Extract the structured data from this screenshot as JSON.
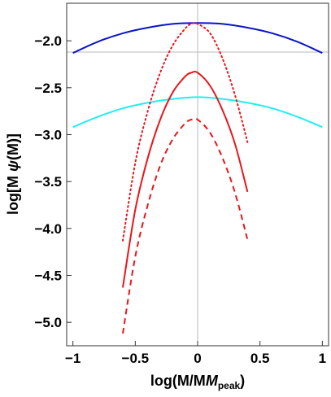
{
  "chart_data": {
    "type": "line",
    "xlabel": "log(M/M",
    "xlabel_italic": "M",
    "xlabel_sub": "peak",
    "xlabel_close": ")",
    "ylabel_pre": "log[M ",
    "ylabel_psi": "ψ",
    "ylabel_post": "(M)]",
    "xlim": [
      -1.05,
      1.05
    ],
    "ylim": [
      -5.25,
      -1.6
    ],
    "xticks": [
      -1,
      -0.5,
      0,
      0.5,
      1
    ],
    "xtick_labels": [
      "−1",
      "−0.5",
      "0",
      "0.5",
      "1"
    ],
    "yticks": [
      -2.0,
      -2.5,
      -3.0,
      -3.5,
      -4.0,
      -4.5,
      -5.0
    ],
    "ytick_labels": [
      "−2.0",
      "−2.5",
      "−3.0",
      "−3.5",
      "−4.0",
      "−4.5",
      "−5.0"
    ],
    "reference_lines": {
      "x": 0,
      "y": -2.12
    },
    "series": [
      {
        "color": "#0a14c8",
        "style": "solid",
        "x": [
          -1.0,
          -0.8,
          -0.6,
          -0.4,
          -0.2,
          0.0,
          0.2,
          0.4,
          0.6,
          0.8,
          1.0
        ],
        "y": [
          -2.13,
          -2.01,
          -1.92,
          -1.86,
          -1.82,
          -1.81,
          -1.82,
          -1.86,
          -1.92,
          -2.01,
          -2.13
        ]
      },
      {
        "color": "#22eef0",
        "style": "solid",
        "x": [
          -1.0,
          -0.8,
          -0.6,
          -0.4,
          -0.2,
          0.0,
          0.2,
          0.4,
          0.6,
          0.8,
          1.0
        ],
        "y": [
          -2.92,
          -2.81,
          -2.72,
          -2.66,
          -2.62,
          -2.6,
          -2.62,
          -2.66,
          -2.72,
          -2.81,
          -2.92
        ]
      },
      {
        "color": "#e8161c",
        "style": "dotted",
        "x": [
          -0.6,
          -0.5,
          -0.4,
          -0.3,
          -0.2,
          -0.1,
          -0.05,
          0.0,
          0.1,
          0.2,
          0.3,
          0.4
        ],
        "y": [
          -4.13,
          -3.3,
          -2.75,
          -2.34,
          -2.05,
          -1.87,
          -1.82,
          -1.82,
          -1.92,
          -2.19,
          -2.58,
          -3.08
        ]
      },
      {
        "color": "#e8161c",
        "style": "solid",
        "x": [
          -0.6,
          -0.5,
          -0.4,
          -0.3,
          -0.2,
          -0.1,
          -0.05,
          0.0,
          0.1,
          0.2,
          0.3,
          0.4
        ],
        "y": [
          -4.63,
          -3.8,
          -3.25,
          -2.84,
          -2.55,
          -2.38,
          -2.34,
          -2.34,
          -2.48,
          -2.74,
          -3.1,
          -3.61
        ]
      },
      {
        "color": "#e8161c",
        "style": "dashed",
        "x": [
          -0.6,
          -0.5,
          -0.4,
          -0.3,
          -0.2,
          -0.1,
          -0.05,
          0.0,
          0.1,
          0.2,
          0.3,
          0.4
        ],
        "y": [
          -5.12,
          -4.3,
          -3.75,
          -3.33,
          -3.05,
          -2.88,
          -2.84,
          -2.84,
          -2.98,
          -3.25,
          -3.62,
          -4.12
        ]
      }
    ]
  }
}
